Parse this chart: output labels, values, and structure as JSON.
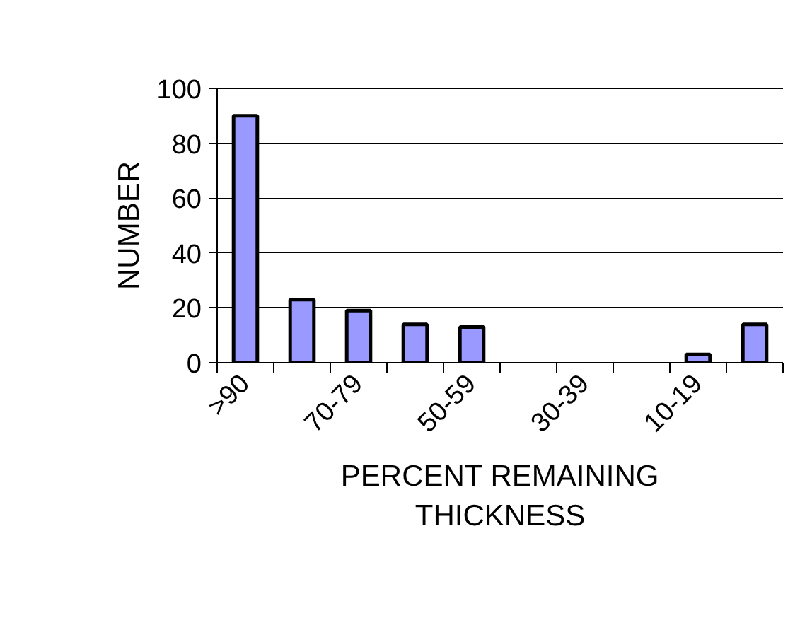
{
  "chart_data": {
    "type": "bar",
    "xlabel": "PERCENT REMAINING THICKNESS",
    "ylabel": "NUMBER",
    "categories": [
      ">90",
      null,
      "70-79",
      null,
      "50-59",
      null,
      "30-39",
      null,
      "10-19",
      null
    ],
    "values": [
      90,
      23,
      19,
      14,
      13,
      0,
      0,
      0,
      3,
      14
    ],
    "color": "#9999ff",
    "ylim": [
      0,
      100
    ],
    "yticks": [
      0,
      20,
      40,
      60,
      80,
      100
    ],
    "grid": "y"
  }
}
